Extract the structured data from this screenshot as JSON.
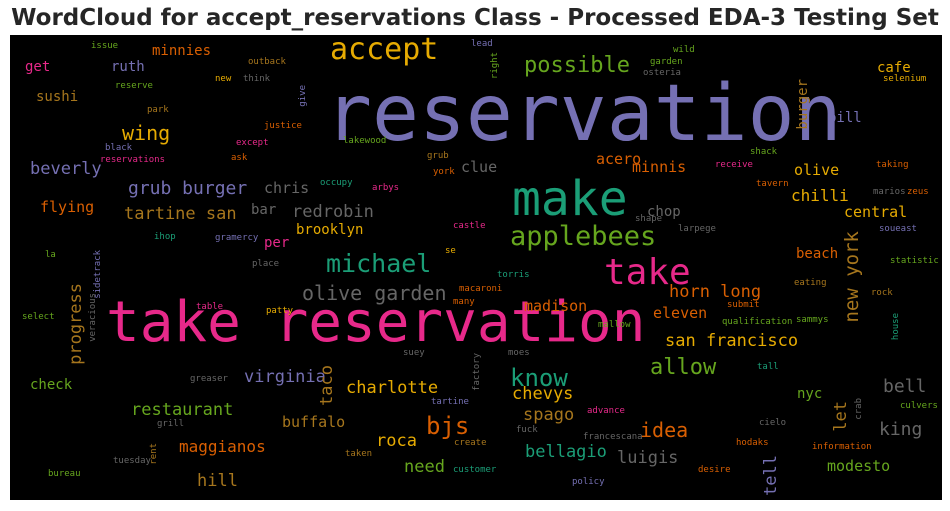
{
  "title": "WordCloud for accept_reservations Class - Processed EDA-3 Testing Set",
  "colors": {
    "background": "#000000",
    "title_text": "#262626",
    "palette": [
      "#7570b3",
      "#e7298a",
      "#1b9e77",
      "#66a61e",
      "#d95f02",
      "#e6ab02",
      "#a6761d",
      "#666666"
    ]
  },
  "words": [
    {
      "text": "reservation",
      "color": "#7570b3"
    },
    {
      "text": "take reservation",
      "color": "#e7298a"
    },
    {
      "text": "make",
      "color": "#1b9e77"
    },
    {
      "text": "accept",
      "color": "#e6ab02"
    },
    {
      "text": "take",
      "color": "#e7298a"
    },
    {
      "text": "applebees",
      "color": "#66a61e"
    },
    {
      "text": "michael",
      "color": "#1b9e77"
    },
    {
      "text": "possible",
      "color": "#66a61e"
    },
    {
      "text": "olive garden",
      "color": "#666666"
    },
    {
      "text": "know",
      "color": "#1b9e77"
    },
    {
      "text": "allow",
      "color": "#66a61e"
    },
    {
      "text": "bjs",
      "color": "#d95f02"
    },
    {
      "text": "idea",
      "color": "#d95f02"
    },
    {
      "text": "wing",
      "color": "#e6ab02"
    },
    {
      "text": "grub burger",
      "color": "#7570b3"
    },
    {
      "text": "redrobin",
      "color": "#666666"
    },
    {
      "text": "new york",
      "color": "#a6761d"
    },
    {
      "text": "king",
      "color": "#666666"
    },
    {
      "text": "bell",
      "color": "#666666"
    },
    {
      "text": "san francisco",
      "color": "#e6ab02"
    },
    {
      "text": "horn long",
      "color": "#d95f02"
    },
    {
      "text": "charlotte",
      "color": "#e6ab02"
    },
    {
      "text": "virginia",
      "color": "#7570b3"
    },
    {
      "text": "restaurant",
      "color": "#66a61e"
    },
    {
      "text": "tartine san",
      "color": "#a6761d"
    },
    {
      "text": "beverly",
      "color": "#7570b3"
    },
    {
      "text": "chevys",
      "color": "#e6ab02"
    },
    {
      "text": "spago",
      "color": "#a6761d"
    },
    {
      "text": "bellagio",
      "color": "#1b9e77"
    },
    {
      "text": "luigis",
      "color": "#666666"
    },
    {
      "text": "roca",
      "color": "#e6ab02"
    },
    {
      "text": "need",
      "color": "#66a61e"
    },
    {
      "text": "maggianos",
      "color": "#d95f02"
    },
    {
      "text": "buffalo",
      "color": "#a6761d"
    },
    {
      "text": "hill",
      "color": "#a6761d"
    },
    {
      "text": "modesto",
      "color": "#66a61e"
    },
    {
      "text": "tell",
      "color": "#7570b3"
    },
    {
      "text": "taco",
      "color": "#a6761d"
    },
    {
      "text": "progress",
      "color": "#a6761d"
    },
    {
      "text": "madison",
      "color": "#d95f02"
    },
    {
      "text": "eleven",
      "color": "#d95f02"
    },
    {
      "text": "let",
      "color": "#a6761d"
    },
    {
      "text": "chilli",
      "color": "#e6ab02"
    },
    {
      "text": "olive",
      "color": "#e6ab02"
    },
    {
      "text": "central",
      "color": "#e6ab02"
    },
    {
      "text": "brooklyn",
      "color": "#e6ab02"
    },
    {
      "text": "flying",
      "color": "#d95f02"
    },
    {
      "text": "chris",
      "color": "#666666"
    },
    {
      "text": "clue",
      "color": "#666666"
    },
    {
      "text": "acero",
      "color": "#d95f02"
    },
    {
      "text": "minnis",
      "color": "#d95f02"
    },
    {
      "text": "chop",
      "color": "#666666"
    },
    {
      "text": "beach",
      "color": "#d95f02"
    },
    {
      "text": "check",
      "color": "#66a61e"
    },
    {
      "text": "nyc",
      "color": "#66a61e"
    },
    {
      "text": "burger",
      "color": "#a6761d"
    },
    {
      "text": "cafe",
      "color": "#e6ab02"
    },
    {
      "text": "bill",
      "color": "#7570b3"
    },
    {
      "text": "sushi",
      "color": "#a6761d"
    },
    {
      "text": "get",
      "color": "#e7298a"
    },
    {
      "text": "ruth",
      "color": "#7570b3"
    },
    {
      "text": "minnies",
      "color": "#d95f02"
    },
    {
      "text": "bar",
      "color": "#666666"
    },
    {
      "text": "per",
      "color": "#e7298a"
    },
    {
      "text": "issue",
      "color": "#66a61e"
    },
    {
      "text": "outback",
      "color": "#a6761d"
    },
    {
      "text": "reserve",
      "color": "#66a61e"
    },
    {
      "text": "new",
      "color": "#e6ab02"
    },
    {
      "text": "think",
      "color": "#666666"
    },
    {
      "text": "park",
      "color": "#a6761d"
    },
    {
      "text": "give",
      "color": "#7570b3"
    },
    {
      "text": "justice",
      "color": "#d95f02"
    },
    {
      "text": "except",
      "color": "#e7298a"
    },
    {
      "text": "ask",
      "color": "#d95f02"
    },
    {
      "text": "black",
      "color": "#7570b3"
    },
    {
      "text": "reservations",
      "color": "#e7298a"
    },
    {
      "text": "lakewood",
      "color": "#66a61e"
    },
    {
      "text": "grub",
      "color": "#a6761d"
    },
    {
      "text": "york",
      "color": "#d95f02"
    },
    {
      "text": "occupy",
      "color": "#1b9e77"
    },
    {
      "text": "arbys",
      "color": "#e7298a"
    },
    {
      "text": "lead",
      "color": "#7570b3"
    },
    {
      "text": "right",
      "color": "#66a61e"
    },
    {
      "text": "osteria",
      "color": "#666666"
    },
    {
      "text": "garden",
      "color": "#66a61e"
    },
    {
      "text": "wild",
      "color": "#66a61e"
    },
    {
      "text": "zeus",
      "color": "#d95f02"
    },
    {
      "text": "selenium",
      "color": "#e6ab02"
    },
    {
      "text": "receive",
      "color": "#e7298a"
    },
    {
      "text": "shack",
      "color": "#66a61e"
    },
    {
      "text": "tavern",
      "color": "#d95f02"
    },
    {
      "text": "taking",
      "color": "#d95f02"
    },
    {
      "text": "marios",
      "color": "#666666"
    },
    {
      "text": "soueast",
      "color": "#7570b3"
    },
    {
      "text": "statistic",
      "color": "#66a61e"
    },
    {
      "text": "rock",
      "color": "#a6761d"
    },
    {
      "text": "eating",
      "color": "#a6761d"
    },
    {
      "text": "house",
      "color": "#1b9e77"
    },
    {
      "text": "sammys",
      "color": "#66a61e"
    },
    {
      "text": "qualification",
      "color": "#66a61e"
    },
    {
      "text": "submit",
      "color": "#d95f02"
    },
    {
      "text": "larpege",
      "color": "#666666"
    },
    {
      "text": "shape",
      "color": "#666666"
    },
    {
      "text": "castle",
      "color": "#e7298a"
    },
    {
      "text": "ihop",
      "color": "#1b9e77"
    },
    {
      "text": "gramercy",
      "color": "#7570b3"
    },
    {
      "text": "sidetrack",
      "color": "#7570b3"
    },
    {
      "text": "la",
      "color": "#66a61e"
    },
    {
      "text": "place",
      "color": "#666666"
    },
    {
      "text": "se",
      "color": "#e6ab02"
    },
    {
      "text": "torris",
      "color": "#1b9e77"
    },
    {
      "text": "patty",
      "color": "#e6ab02"
    },
    {
      "text": "macaroni",
      "color": "#d95f02"
    },
    {
      "text": "many",
      "color": "#d95f02"
    },
    {
      "text": "table",
      "color": "#e7298a"
    },
    {
      "text": "veracious",
      "color": "#666666"
    },
    {
      "text": "select",
      "color": "#66a61e"
    },
    {
      "text": "mallow",
      "color": "#66a61e"
    },
    {
      "text": "suey",
      "color": "#666666"
    },
    {
      "text": "moes",
      "color": "#666666"
    },
    {
      "text": "factory",
      "color": "#666666"
    },
    {
      "text": "greaser",
      "color": "#666666"
    },
    {
      "text": "tartine",
      "color": "#7570b3"
    },
    {
      "text": "advance",
      "color": "#e7298a"
    },
    {
      "text": "tall",
      "color": "#1b9e77"
    },
    {
      "text": "grill",
      "color": "#666666"
    },
    {
      "text": "crab",
      "color": "#666666"
    },
    {
      "text": "cielo",
      "color": "#666666"
    },
    {
      "text": "culvers",
      "color": "#66a61e"
    },
    {
      "text": "rent",
      "color": "#a6761d"
    },
    {
      "text": "tuesday",
      "color": "#666666"
    },
    {
      "text": "create",
      "color": "#a6761d"
    },
    {
      "text": "fuck",
      "color": "#666666"
    },
    {
      "text": "francescana",
      "color": "#666666"
    },
    {
      "text": "hodaks",
      "color": "#d95f02"
    },
    {
      "text": "information",
      "color": "#d95f02"
    },
    {
      "text": "taken",
      "color": "#a6761d"
    },
    {
      "text": "customer",
      "color": "#1b9e77"
    },
    {
      "text": "desire",
      "color": "#d95f02"
    },
    {
      "text": "bureau",
      "color": "#66a61e"
    },
    {
      "text": "policy",
      "color": "#7570b3"
    }
  ]
}
